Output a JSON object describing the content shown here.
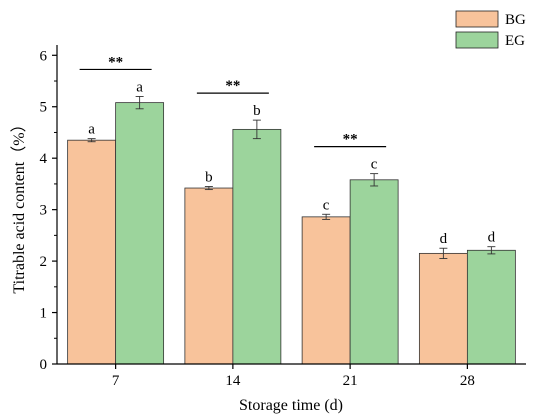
{
  "chart_data": {
    "type": "bar",
    "categories": [
      "7",
      "14",
      "21",
      "28"
    ],
    "series": [
      {
        "name": "BG",
        "color": "#f8c39b",
        "values": [
          4.35,
          3.42,
          2.86,
          2.15
        ],
        "errors": [
          0.03,
          0.03,
          0.05,
          0.1
        ],
        "letters": [
          "a",
          "b",
          "c",
          "d"
        ]
      },
      {
        "name": "EG",
        "color": "#9cd49c",
        "values": [
          5.08,
          4.56,
          3.58,
          2.21
        ],
        "errors": [
          0.12,
          0.18,
          0.12,
          0.07
        ],
        "letters": [
          "a",
          "b",
          "c",
          "d"
        ]
      }
    ],
    "significance": [
      {
        "category": "7",
        "label": "**"
      },
      {
        "category": "14",
        "label": "**"
      },
      {
        "category": "21",
        "label": "**"
      }
    ],
    "xlabel": "Storage time (d)",
    "ylabel": "Titrable acid content（%）",
    "ylim": [
      0,
      6
    ],
    "yticks": [
      0,
      1,
      2,
      3,
      4,
      5,
      6
    ],
    "legend_position": "top-right",
    "grid": false
  }
}
